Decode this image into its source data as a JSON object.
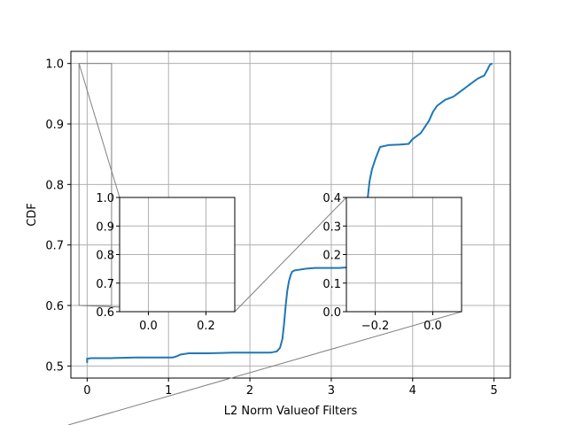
{
  "chart_data": {
    "type": "line",
    "title": "",
    "xlabel": "L2 Norm Valueof Filters",
    "ylabel": "CDF",
    "xlim": [
      -0.2,
      5.2
    ],
    "ylim": [
      0.48,
      1.02
    ],
    "xticks": [
      0,
      1,
      2,
      3,
      4,
      5
    ],
    "xtick_labels": [
      "0",
      "1",
      "2",
      "3",
      "4",
      "5"
    ],
    "yticks": [
      0.5,
      0.6,
      0.7,
      0.8,
      0.9,
      1.0
    ],
    "ytick_labels": [
      "0.5",
      "0.6",
      "0.7",
      "0.8",
      "0.9",
      "1.0"
    ],
    "grid": true,
    "line_color": "#1f77b4",
    "series": [
      {
        "x": [
          0.0,
          0.0,
          0.05,
          0.3,
          0.6,
          0.9,
          1.05,
          1.1,
          1.15,
          1.25,
          1.5,
          1.8,
          2.1,
          2.25,
          2.33,
          2.37,
          2.4,
          2.42,
          2.44,
          2.46,
          2.48,
          2.5,
          2.52,
          2.55,
          2.6,
          2.65,
          2.7,
          2.8,
          2.9,
          3.0,
          3.1,
          3.2,
          3.3,
          3.38,
          3.42,
          3.45,
          3.47,
          3.5,
          3.55,
          3.6,
          3.7,
          3.85,
          3.95,
          4.0,
          4.05,
          4.1,
          4.15,
          4.2,
          4.25,
          4.3,
          4.4,
          4.5,
          4.55,
          4.6,
          4.65,
          4.7,
          4.8,
          4.88,
          4.92,
          4.95,
          4.98
        ],
        "y": [
          0.505,
          0.512,
          0.513,
          0.513,
          0.514,
          0.514,
          0.514,
          0.516,
          0.519,
          0.521,
          0.521,
          0.522,
          0.522,
          0.522,
          0.524,
          0.53,
          0.545,
          0.57,
          0.6,
          0.625,
          0.64,
          0.65,
          0.656,
          0.658,
          0.659,
          0.66,
          0.661,
          0.662,
          0.662,
          0.662,
          0.662,
          0.663,
          0.668,
          0.69,
          0.73,
          0.78,
          0.805,
          0.825,
          0.845,
          0.862,
          0.865,
          0.866,
          0.867,
          0.875,
          0.88,
          0.885,
          0.895,
          0.905,
          0.92,
          0.93,
          0.94,
          0.945,
          0.95,
          0.955,
          0.96,
          0.965,
          0.975,
          0.98,
          0.99,
          0.998,
          1.0
        ]
      }
    ],
    "insets": [
      {
        "xlim": [
          -0.1,
          0.3
        ],
        "ylim": [
          0.6,
          1.0
        ],
        "xticks": [
          0.0,
          0.2
        ],
        "xtick_labels": [
          "0.0",
          "0.2"
        ],
        "yticks": [
          0.6,
          0.7,
          0.8,
          0.9,
          1.0
        ],
        "ytick_labels": [
          "0.6",
          "0.7",
          "0.8",
          "0.9",
          "1.0"
        ],
        "grid": true
      },
      {
        "xlim": [
          -0.3,
          0.1
        ],
        "ylim": [
          0.0,
          0.4
        ],
        "xticks": [
          -0.2,
          0.0
        ],
        "xtick_labels": [
          "−0.2",
          "0.0"
        ],
        "yticks": [
          0.0,
          0.1,
          0.2,
          0.3,
          0.4
        ],
        "ytick_labels": [
          "0.0",
          "0.1",
          "0.2",
          "0.3",
          "0.4"
        ],
        "grid": true
      }
    ]
  }
}
